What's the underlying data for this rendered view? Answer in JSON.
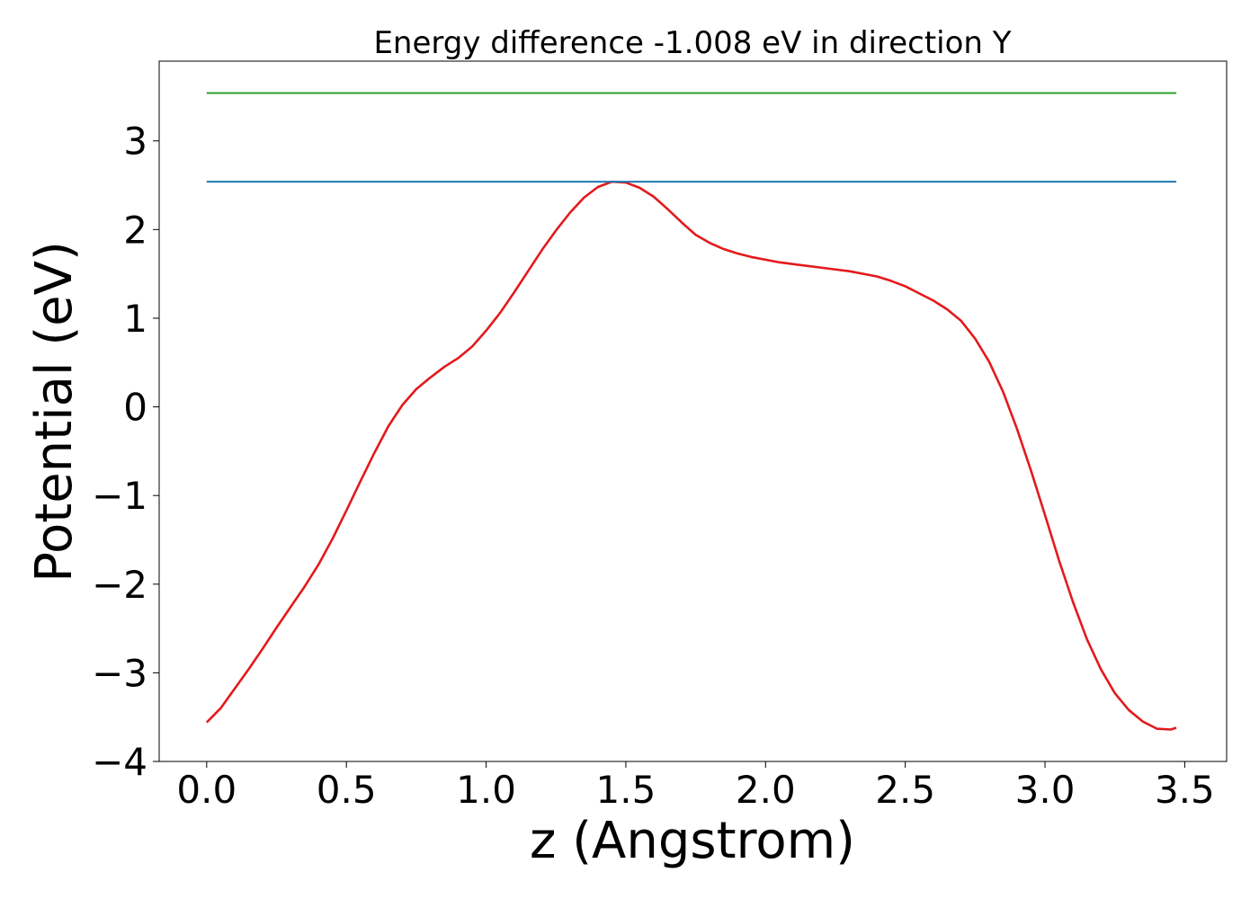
{
  "chart_data": {
    "type": "line",
    "title": "Energy difference -1.008 eV in direction Y",
    "xlabel": "z (Angstrom)",
    "ylabel": "Potential (eV)",
    "xlim": [
      -0.17,
      3.65
    ],
    "ylim": [
      -4.0,
      3.9
    ],
    "xticks": [
      0.0,
      0.5,
      1.0,
      1.5,
      2.0,
      2.5,
      3.0,
      3.5
    ],
    "xtick_labels": [
      "0.0",
      "0.5",
      "1.0",
      "1.5",
      "2.0",
      "2.5",
      "3.0",
      "3.5"
    ],
    "yticks": [
      -4,
      -3,
      -2,
      -1,
      0,
      1,
      2,
      3
    ],
    "ytick_labels": [
      "−4",
      "−3",
      "−2",
      "−1",
      "0",
      "1",
      "2",
      "3"
    ],
    "grid": false,
    "legend": "none",
    "series": [
      {
        "color": "#e31a1c",
        "x": [
          0.0,
          0.05,
          0.1,
          0.15,
          0.2,
          0.25,
          0.3,
          0.35,
          0.4,
          0.45,
          0.5,
          0.55,
          0.6,
          0.65,
          0.7,
          0.75,
          0.8,
          0.85,
          0.9,
          0.95,
          1.0,
          1.05,
          1.1,
          1.15,
          1.2,
          1.25,
          1.3,
          1.35,
          1.4,
          1.45,
          1.5,
          1.55,
          1.6,
          1.65,
          1.7,
          1.75,
          1.8,
          1.85,
          1.9,
          1.95,
          2.0,
          2.05,
          2.1,
          2.15,
          2.2,
          2.25,
          2.3,
          2.35,
          2.4,
          2.45,
          2.5,
          2.55,
          2.6,
          2.65,
          2.7,
          2.75,
          2.8,
          2.85,
          2.9,
          2.95,
          3.0,
          3.05,
          3.1,
          3.15,
          3.2,
          3.25,
          3.3,
          3.35,
          3.4,
          3.45,
          3.47
        ],
        "y": [
          -3.56,
          -3.4,
          -3.18,
          -2.96,
          -2.73,
          -2.49,
          -2.26,
          -2.03,
          -1.78,
          -1.49,
          -1.17,
          -0.84,
          -0.52,
          -0.22,
          0.02,
          0.2,
          0.33,
          0.45,
          0.55,
          0.68,
          0.86,
          1.06,
          1.29,
          1.53,
          1.77,
          1.99,
          2.19,
          2.36,
          2.48,
          2.54,
          2.53,
          2.47,
          2.37,
          2.23,
          2.08,
          1.94,
          1.85,
          1.78,
          1.73,
          1.69,
          1.66,
          1.63,
          1.61,
          1.59,
          1.57,
          1.55,
          1.53,
          1.5,
          1.47,
          1.42,
          1.36,
          1.28,
          1.2,
          1.1,
          0.97,
          0.77,
          0.51,
          0.17,
          -0.25,
          -0.72,
          -1.22,
          -1.73,
          -2.2,
          -2.62,
          -2.96,
          -3.23,
          -3.42,
          -3.55,
          -3.63,
          -3.64,
          -3.62
        ]
      },
      {
        "color": "#1f77b4",
        "x": [
          0.0,
          3.47
        ],
        "y": [
          2.54,
          2.54
        ]
      },
      {
        "color": "#2ca02c",
        "x": [
          0.0,
          3.47
        ],
        "y": [
          3.54,
          3.54
        ]
      }
    ]
  }
}
